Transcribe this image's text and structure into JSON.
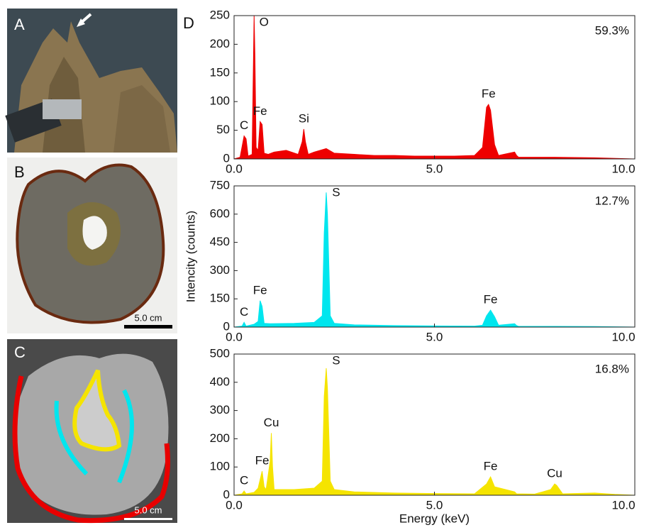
{
  "panels": {
    "a": "A",
    "b": "B",
    "c": "C",
    "d": "D"
  },
  "scale_bars": {
    "b": "5.0 cm",
    "c": "5.0 cm"
  },
  "chart_data": [
    {
      "type": "area",
      "color": "#ee0000",
      "fraction": {
        "value": 59.3,
        "label": "59.3%"
      },
      "x": [
        0,
        0.15,
        0.25,
        0.3,
        0.35,
        0.45,
        0.5,
        0.52,
        0.55,
        0.6,
        0.65,
        0.7,
        0.75,
        0.85,
        1.0,
        1.3,
        1.6,
        1.7,
        1.74,
        1.78,
        1.85,
        2.0,
        2.3,
        2.5,
        3,
        3.5,
        4,
        4.5,
        5,
        5.5,
        6.0,
        6.2,
        6.3,
        6.35,
        6.4,
        6.5,
        6.6,
        7.0,
        7.05,
        7.1,
        8,
        9,
        10
      ],
      "values": [
        0,
        3,
        40,
        35,
        5,
        8,
        250,
        180,
        20,
        15,
        65,
        60,
        10,
        8,
        12,
        15,
        8,
        30,
        52,
        30,
        8,
        12,
        18,
        10,
        8,
        6,
        6,
        5,
        5,
        5,
        6,
        20,
        90,
        95,
        85,
        25,
        6,
        12,
        6,
        3,
        3,
        2,
        0
      ],
      "annotations": [
        {
          "text": "C",
          "x": 0.25
        },
        {
          "text": "O",
          "x": 0.5
        },
        {
          "text": "Fe",
          "x": 0.65
        },
        {
          "text": "Si",
          "x": 1.74
        },
        {
          "text": "Fe",
          "x": 6.35
        }
      ],
      "xlim": [
        0,
        10
      ],
      "xticks": [
        {
          "value": 0,
          "label": "0.0"
        },
        {
          "value": 5,
          "label": "5.0"
        },
        {
          "value": 10,
          "label": "10.0"
        }
      ],
      "ylim": [
        0,
        250
      ],
      "yticks": [
        0,
        50,
        100,
        150,
        200,
        250
      ]
    },
    {
      "type": "area",
      "color": "#00e6ee",
      "fraction": {
        "value": 12.7,
        "label": "12.7%"
      },
      "ylabel": "Intencity (counts)",
      "x": [
        0,
        0.2,
        0.25,
        0.3,
        0.5,
        0.6,
        0.65,
        0.7,
        0.75,
        0.9,
        1.5,
        2.0,
        2.2,
        2.25,
        2.3,
        2.33,
        2.4,
        2.5,
        3,
        4,
        5,
        6,
        6.2,
        6.3,
        6.4,
        6.5,
        6.6,
        7.0,
        7.05,
        7.1,
        8,
        9,
        10
      ],
      "values": [
        0,
        5,
        25,
        5,
        15,
        30,
        140,
        110,
        20,
        18,
        20,
        25,
        60,
        500,
        715,
        600,
        60,
        20,
        12,
        8,
        6,
        5,
        10,
        60,
        90,
        55,
        10,
        18,
        8,
        4,
        4,
        3,
        0
      ],
      "annotations": [
        {
          "text": "C",
          "x": 0.25
        },
        {
          "text": "Fe",
          "x": 0.65
        },
        {
          "text": "S",
          "x": 2.3
        },
        {
          "text": "Fe",
          "x": 6.4
        }
      ],
      "xlim": [
        0,
        10
      ],
      "xticks": [
        {
          "value": 0,
          "label": "0.0"
        },
        {
          "value": 5,
          "label": "5.0"
        },
        {
          "value": 10,
          "label": "10.0"
        }
      ],
      "ylim": [
        0,
        750
      ],
      "yticks": [
        0,
        150,
        300,
        450,
        600,
        750
      ]
    },
    {
      "type": "area",
      "color": "#f5e400",
      "fraction": {
        "value": 16.8,
        "label": "16.8%"
      },
      "xlabel": "Energy (keV)",
      "x": [
        0,
        0.2,
        0.25,
        0.3,
        0.5,
        0.6,
        0.7,
        0.75,
        0.8,
        0.9,
        0.93,
        0.96,
        1.0,
        1.5,
        2.0,
        2.2,
        2.25,
        2.3,
        2.33,
        2.4,
        2.5,
        3,
        4,
        5,
        6,
        6.3,
        6.4,
        6.5,
        7.0,
        7.05,
        7.5,
        7.9,
        8.0,
        8.05,
        8.2,
        9,
        9.5,
        10
      ],
      "values": [
        0,
        5,
        15,
        5,
        10,
        25,
        85,
        30,
        20,
        120,
        220,
        100,
        20,
        20,
        25,
        50,
        350,
        450,
        380,
        50,
        20,
        12,
        8,
        6,
        5,
        40,
        65,
        30,
        12,
        5,
        4,
        20,
        40,
        35,
        5,
        8,
        3,
        0
      ],
      "annotations": [
        {
          "text": "C",
          "x": 0.25
        },
        {
          "text": "Fe",
          "x": 0.7
        },
        {
          "text": "Cu",
          "x": 0.93
        },
        {
          "text": "S",
          "x": 2.3
        },
        {
          "text": "Fe",
          "x": 6.4
        },
        {
          "text": "Cu",
          "x": 8.0
        }
      ],
      "xlim": [
        0,
        10
      ],
      "xticks": [
        {
          "value": 0,
          "label": "0.0"
        },
        {
          "value": 5,
          "label": "5.0"
        },
        {
          "value": 10,
          "label": "10.0"
        }
      ],
      "ylim": [
        0,
        500
      ],
      "yticks": [
        0,
        100,
        200,
        300,
        400,
        500
      ]
    }
  ]
}
